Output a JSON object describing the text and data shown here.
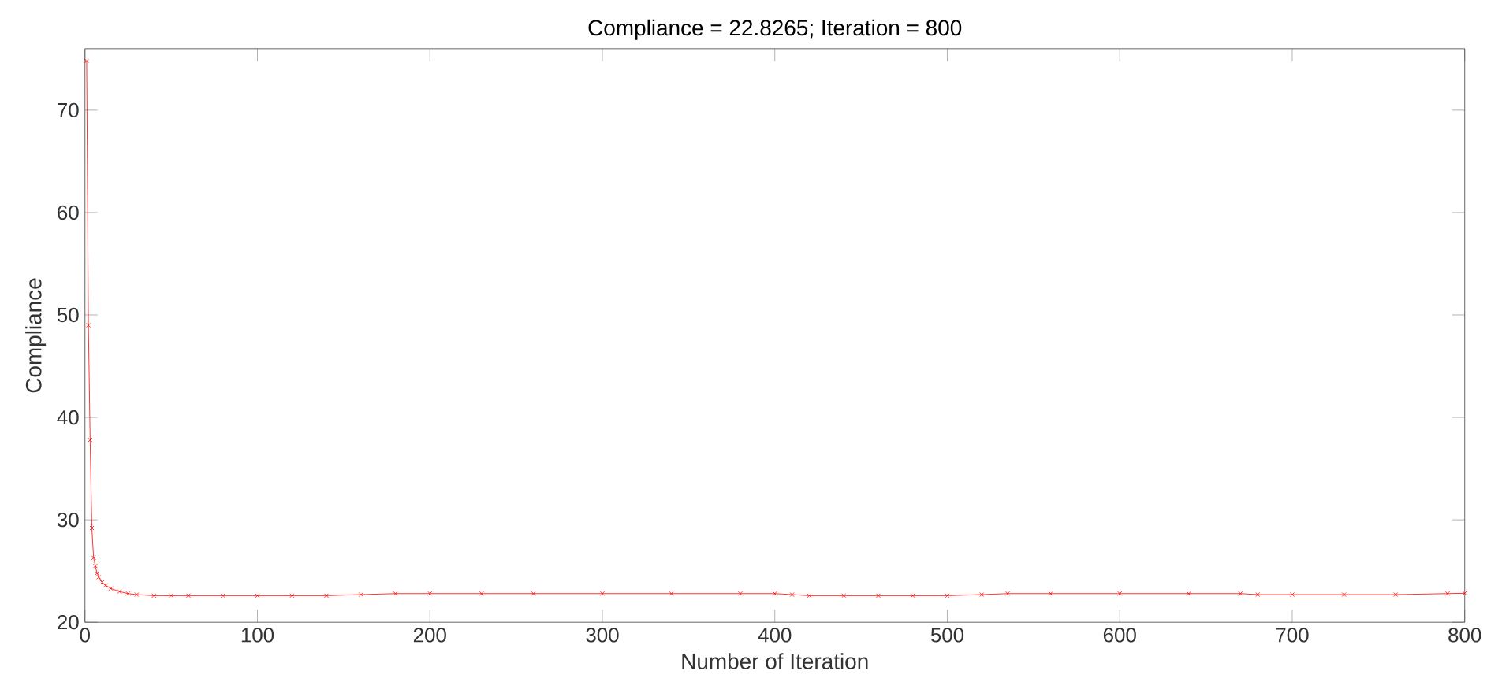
{
  "chart_data": {
    "type": "line",
    "title": "Compliance = 22.8265; Iteration = 800",
    "xlabel": "Number of Iteration",
    "ylabel": "Compliance",
    "xlim": [
      0,
      800
    ],
    "ylim": [
      20,
      76
    ],
    "xticks": [
      0,
      100,
      200,
      300,
      400,
      500,
      600,
      700,
      800
    ],
    "yticks": [
      20,
      30,
      40,
      50,
      60,
      70
    ],
    "grid": false,
    "marker": "cross",
    "line_style": "solid",
    "series": [
      {
        "color": "#ff0000",
        "x": [
          1,
          2,
          3,
          4,
          5,
          6,
          7,
          8,
          10,
          12,
          15,
          20,
          25,
          30,
          40,
          50,
          60,
          80,
          100,
          120,
          140,
          160,
          180,
          200,
          230,
          260,
          300,
          340,
          380,
          400,
          410,
          420,
          440,
          460,
          480,
          500,
          520,
          535,
          560,
          600,
          640,
          670,
          680,
          700,
          730,
          760,
          790,
          800
        ],
        "values": [
          74.8,
          49.0,
          37.8,
          29.2,
          26.3,
          25.5,
          24.8,
          24.4,
          23.9,
          23.6,
          23.3,
          23.0,
          22.8,
          22.7,
          22.6,
          22.6,
          22.6,
          22.6,
          22.6,
          22.6,
          22.6,
          22.7,
          22.8,
          22.8,
          22.8,
          22.8,
          22.8,
          22.8,
          22.8,
          22.8,
          22.7,
          22.6,
          22.6,
          22.6,
          22.6,
          22.6,
          22.7,
          22.8,
          22.8,
          22.8,
          22.8,
          22.8,
          22.7,
          22.7,
          22.7,
          22.7,
          22.8,
          22.83
        ]
      }
    ]
  }
}
